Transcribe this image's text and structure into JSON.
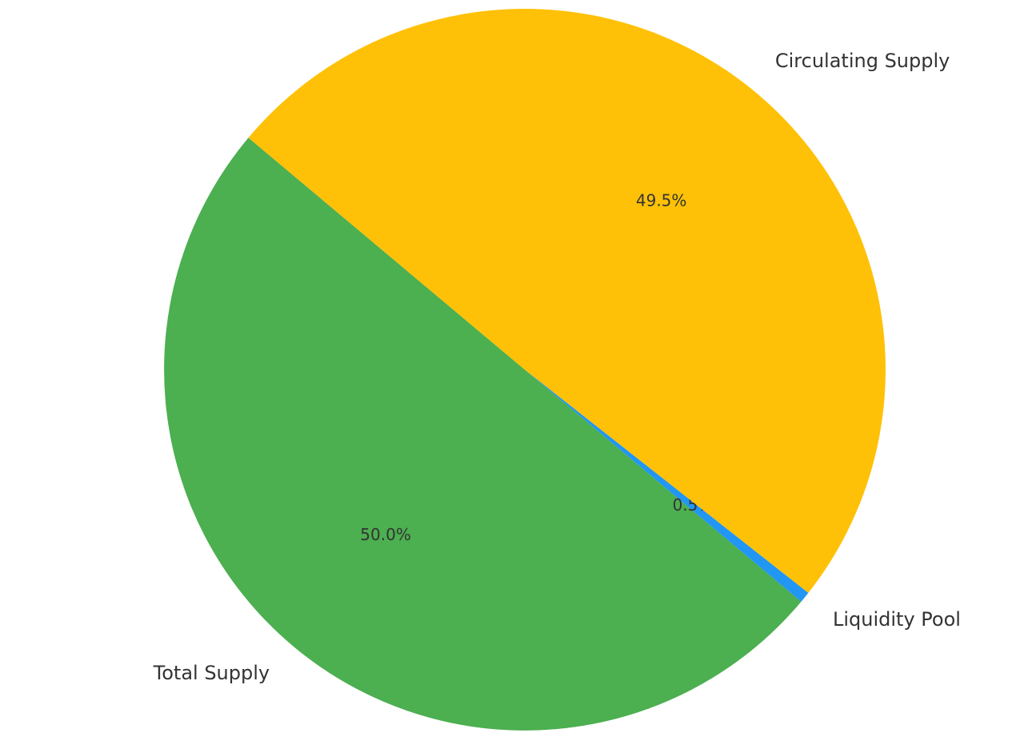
{
  "chart_data": {
    "type": "pie",
    "categories": [
      "Total Supply",
      "Liquidity Pool",
      "Circulating Supply"
    ],
    "values": [
      50.0,
      0.5,
      49.5
    ],
    "value_labels": [
      "50.0%",
      "0.5%",
      "49.5%"
    ],
    "colors": [
      "#4caf50",
      "#2196f3",
      "#ffc107"
    ]
  }
}
